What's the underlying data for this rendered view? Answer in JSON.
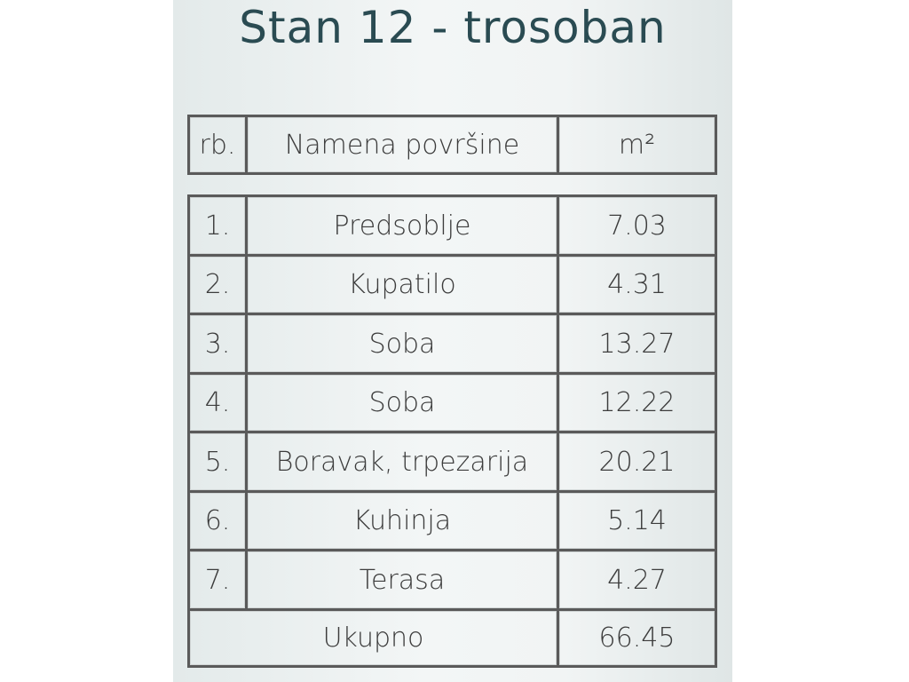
{
  "header": {
    "title": "Stan 12 - trosoban"
  },
  "table": {
    "columns": [
      "rb.",
      "Namena površine",
      "m²"
    ],
    "rows": [
      [
        "1.",
        "Predsoblje",
        "7.03"
      ],
      [
        "2.",
        "Kupatilo",
        "4.31"
      ],
      [
        "3.",
        "Soba",
        "13.27"
      ],
      [
        "4.",
        "Soba",
        "12.22"
      ],
      [
        "5.",
        "Boravak, trpezarija",
        "20.21"
      ],
      [
        "6.",
        "Kuhinja",
        "5.14"
      ],
      [
        "7.",
        "Terasa",
        "4.27"
      ]
    ],
    "total": [
      "Ukupno",
      "66.45"
    ]
  }
}
